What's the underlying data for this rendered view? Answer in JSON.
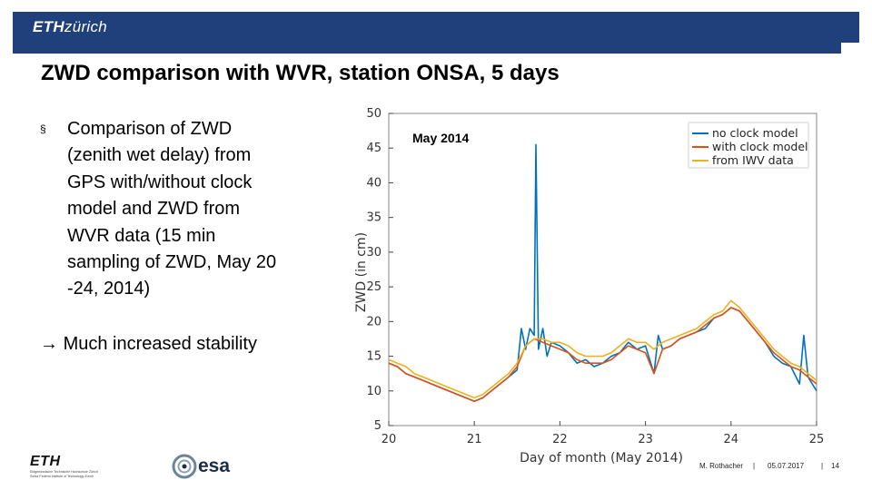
{
  "header": {
    "brand_bold": "ETH",
    "brand_italic": "zürich",
    "bar_color": "#1f407a"
  },
  "title": "ZWD comparison with WVR, station ONSA, 5 days",
  "bullet": {
    "marker": "§",
    "lines": [
      "Comparison of ZWD",
      "(zenith wet delay) from",
      "GPS with/without clock",
      "model and ZWD from",
      "WVR data  (15 min",
      "sampling of ZWD, May 20",
      "-24, 2014)"
    ]
  },
  "conclusion": {
    "arrow": "→",
    "text": "Much increased stability"
  },
  "chart_data": {
    "type": "line",
    "title": "May 2014",
    "xlabel": "Day of month (May 2014)",
    "ylabel": "ZWD (in cm)",
    "xlim": [
      20,
      25
    ],
    "ylim": [
      5,
      50
    ],
    "xticks": [
      20,
      21,
      22,
      23,
      24,
      25
    ],
    "yticks": [
      5,
      10,
      15,
      20,
      25,
      30,
      35,
      40,
      45,
      50
    ],
    "grid": false,
    "legend_position": "top-right",
    "series": [
      {
        "name": "no clock model",
        "color": "#0072bd",
        "x": [
          20.0,
          20.1,
          20.2,
          20.3,
          20.4,
          20.5,
          20.6,
          20.7,
          20.8,
          20.9,
          21.0,
          21.1,
          21.2,
          21.3,
          21.4,
          21.5,
          21.55,
          21.6,
          21.65,
          21.7,
          21.72,
          21.75,
          21.8,
          21.85,
          21.9,
          22.0,
          22.1,
          22.2,
          22.3,
          22.4,
          22.5,
          22.6,
          22.7,
          22.8,
          22.9,
          23.0,
          23.1,
          23.15,
          23.2,
          23.3,
          23.4,
          23.5,
          23.6,
          23.7,
          23.8,
          23.9,
          24.0,
          24.1,
          24.2,
          24.3,
          24.4,
          24.5,
          24.6,
          24.7,
          24.8,
          24.85,
          24.9,
          25.0
        ],
        "y": [
          14,
          13.5,
          12.5,
          12,
          11.5,
          11,
          10.5,
          10,
          9.5,
          9,
          8.5,
          9,
          10,
          11,
          12,
          13,
          19,
          16,
          19,
          18,
          45.5,
          16,
          19,
          15,
          17,
          16.5,
          15.5,
          14,
          14.5,
          13.5,
          14,
          15,
          15.5,
          17,
          16,
          16.5,
          12.5,
          18,
          16,
          16.5,
          17.5,
          18,
          18.5,
          19,
          20.5,
          21,
          22,
          21.5,
          20,
          18.5,
          17,
          15,
          14,
          13.5,
          11,
          18,
          12,
          10
        ]
      },
      {
        "name": "with clock model",
        "color": "#d95319",
        "x": [
          20.0,
          20.1,
          20.2,
          20.3,
          20.4,
          20.5,
          20.6,
          20.7,
          20.8,
          20.9,
          21.0,
          21.1,
          21.2,
          21.3,
          21.4,
          21.5,
          21.6,
          21.7,
          21.8,
          21.9,
          22.0,
          22.1,
          22.2,
          22.3,
          22.4,
          22.5,
          22.6,
          22.7,
          22.8,
          22.9,
          23.0,
          23.1,
          23.2,
          23.3,
          23.4,
          23.5,
          23.6,
          23.7,
          23.8,
          23.9,
          24.0,
          24.1,
          24.2,
          24.3,
          24.4,
          24.5,
          24.6,
          24.7,
          24.8,
          24.9,
          25.0
        ],
        "y": [
          14,
          13.5,
          12.5,
          12,
          11.5,
          11,
          10.5,
          10,
          9.5,
          9,
          8.5,
          9,
          10,
          11,
          12,
          13.5,
          16.5,
          17.5,
          17,
          16.5,
          16,
          15.5,
          14.5,
          14,
          14,
          14,
          14.5,
          15.5,
          16.5,
          16,
          15.5,
          12.5,
          16,
          16.5,
          17.5,
          18,
          18.5,
          19.5,
          20.5,
          21,
          22,
          21.5,
          20,
          18.5,
          17,
          15.5,
          14.5,
          13.5,
          13,
          12,
          11
        ]
      },
      {
        "name": "from IWV data",
        "color": "#edb120",
        "x": [
          20.0,
          20.1,
          20.2,
          20.3,
          20.4,
          20.5,
          20.6,
          20.7,
          20.8,
          20.9,
          21.0,
          21.1,
          21.2,
          21.3,
          21.4,
          21.5,
          21.6,
          21.7,
          21.8,
          21.9,
          22.0,
          22.1,
          22.2,
          22.3,
          22.4,
          22.5,
          22.6,
          22.7,
          22.8,
          22.9,
          23.0,
          23.1,
          23.2,
          23.3,
          23.4,
          23.5,
          23.6,
          23.7,
          23.8,
          23.9,
          24.0,
          24.1,
          24.2,
          24.3,
          24.4,
          24.5,
          24.6,
          24.7,
          24.8,
          24.9,
          25.0
        ],
        "y": [
          14.5,
          14,
          13.5,
          12.5,
          12,
          11.5,
          11,
          10.5,
          10,
          9.5,
          9,
          9.5,
          10.5,
          11.5,
          12.5,
          14,
          16.5,
          17.5,
          17.5,
          17,
          17,
          16.5,
          15.5,
          15,
          15,
          15,
          15.5,
          16.5,
          17.5,
          17,
          17,
          16,
          17,
          17.5,
          18,
          18.5,
          19,
          20,
          21,
          21.5,
          23,
          22,
          20.5,
          19,
          17.5,
          16,
          15,
          14,
          13.5,
          12.5,
          11.5
        ]
      }
    ]
  },
  "footer": {
    "author": "M. Rothacher",
    "sep": "|",
    "date": "05.07.2017",
    "page": "14"
  },
  "logos": {
    "eth_word": "ETH",
    "eth_line1": "Eidgenössische Technische Hochschule Zürich",
    "eth_line2": "Swiss Federal Institute of Technology Zurich",
    "esa_word": "esa"
  }
}
